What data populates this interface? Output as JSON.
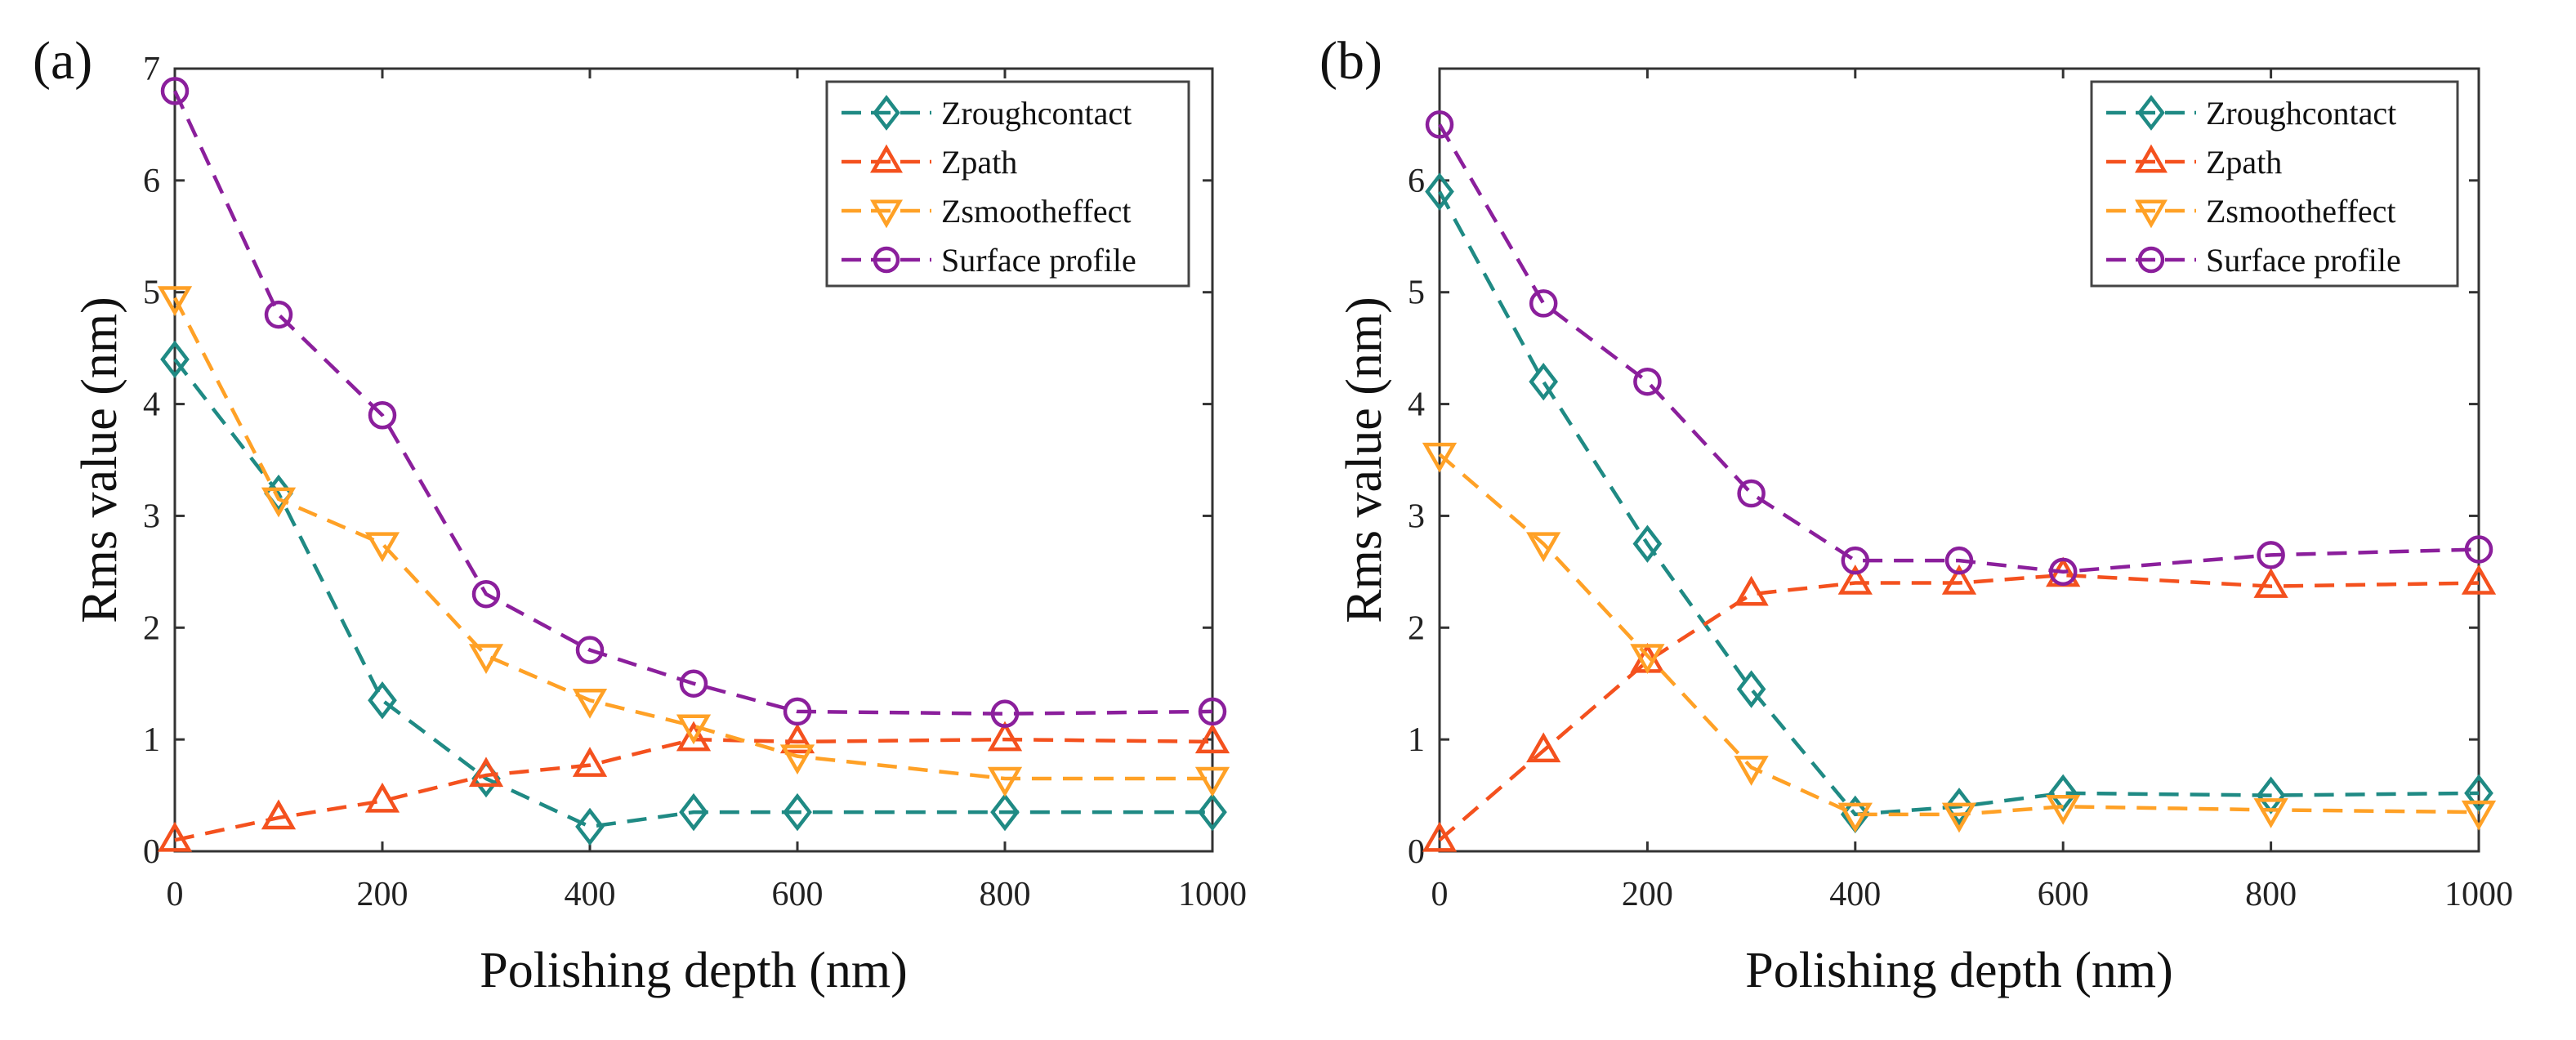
{
  "chart_data": [
    {
      "type": "line",
      "panel_label": "(a)",
      "xlabel": "Polishing depth (nm)",
      "ylabel": "Rms value (nm)",
      "xlim": [
        0,
        1000
      ],
      "ylim": [
        0,
        7
      ],
      "xticks": [
        "0",
        "200",
        "400",
        "600",
        "800",
        "1000"
      ],
      "yticks": [
        "0",
        "1",
        "2",
        "3",
        "4",
        "5",
        "6",
        "7"
      ],
      "legend_position": "top-right",
      "x": [
        0,
        100,
        200,
        300,
        400,
        500,
        600,
        800,
        1000
      ],
      "series": [
        {
          "name": "Zroughcontact",
          "marker": "diamond",
          "color": "#1f8a84",
          "values": [
            4.4,
            3.2,
            1.35,
            0.65,
            0.22,
            0.35,
            0.35,
            0.35,
            0.35
          ]
        },
        {
          "name": "Zpath",
          "marker": "triangle-up",
          "color": "#f4511e",
          "values": [
            0.1,
            0.3,
            0.45,
            0.68,
            0.77,
            1.0,
            0.98,
            1.0,
            0.98
          ]
        },
        {
          "name": "Zsmootheffect",
          "marker": "triangle-down",
          "color": "#ffa126",
          "values": [
            4.95,
            3.15,
            2.75,
            1.75,
            1.35,
            1.12,
            0.85,
            0.65,
            0.65
          ]
        },
        {
          "name": "Surface profile",
          "marker": "circle",
          "color": "#8b1f9c",
          "values": [
            6.8,
            4.8,
            3.9,
            2.3,
            1.8,
            1.5,
            1.25,
            1.23,
            1.25
          ]
        }
      ]
    },
    {
      "type": "line",
      "panel_label": "(b)",
      "xlabel": "Polishing depth (nm)",
      "ylabel": "Rms value (nm)",
      "xlim": [
        0,
        1000
      ],
      "ylim": [
        0,
        7
      ],
      "xticks": [
        "0",
        "200",
        "400",
        "600",
        "800",
        "1000"
      ],
      "yticks": [
        "0",
        "1",
        "2",
        "3",
        "4",
        "5",
        "6"
      ],
      "legend_position": "top-right",
      "x": [
        0,
        100,
        200,
        300,
        400,
        500,
        600,
        800,
        1000
      ],
      "series": [
        {
          "name": "Zroughcontact",
          "marker": "diamond",
          "color": "#1f8a84",
          "values": [
            5.9,
            4.2,
            2.75,
            1.45,
            0.33,
            0.4,
            0.52,
            0.5,
            0.52
          ]
        },
        {
          "name": "Zpath",
          "marker": "triangle-up",
          "color": "#f4511e",
          "values": [
            0.1,
            0.9,
            1.7,
            2.3,
            2.4,
            2.4,
            2.47,
            2.37,
            2.4
          ]
        },
        {
          "name": "Zsmootheffect",
          "marker": "triangle-down",
          "color": "#ffa126",
          "values": [
            3.55,
            2.75,
            1.75,
            0.75,
            0.33,
            0.33,
            0.4,
            0.37,
            0.35
          ]
        },
        {
          "name": "Surface profile",
          "marker": "circle",
          "color": "#8b1f9c",
          "values": [
            6.5,
            4.9,
            4.2,
            3.2,
            2.6,
            2.6,
            2.5,
            2.65,
            2.7
          ]
        }
      ]
    }
  ]
}
